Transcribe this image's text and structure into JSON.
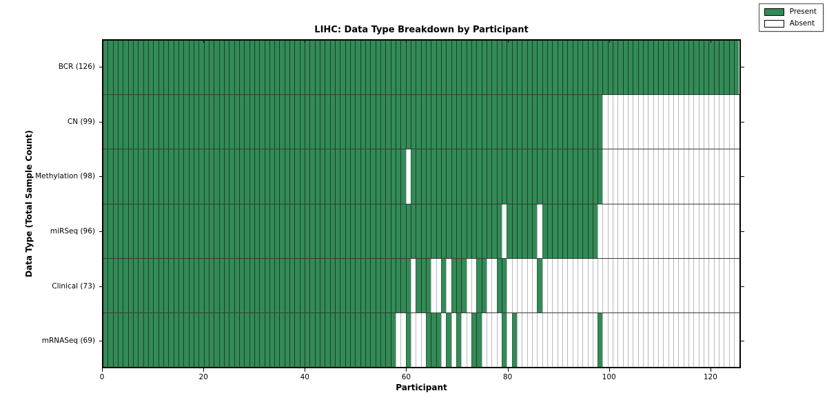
{
  "figure": {
    "title": "LIHC: Data Type Breakdown by Participant",
    "xlabel": "Participant",
    "ylabel": "Data Type (Total Sample Count)"
  },
  "legend": {
    "items": [
      {
        "label": "Present",
        "color": "#348a57"
      },
      {
        "label": "Absent",
        "color": "#ffffff"
      }
    ]
  },
  "colors": {
    "present": "#348a57",
    "absent": "#ffffff",
    "grid_on_green": "rgba(10,40,24,0.75)",
    "grid_on_white": "rgba(0,0,0,0.28)",
    "row_separator": "#3a3a3a",
    "plot_border": "#000000"
  },
  "chart_data": {
    "type": "heatmap",
    "title": "LIHC: Data Type Breakdown by Participant",
    "xlabel": "Participant",
    "ylabel": "Data Type (Total Sample Count)",
    "legend_entries": [
      "Present",
      "Absent"
    ],
    "legend_position": "upper right (inside plot)",
    "grid": "per-participant column grid lines, row separator lines",
    "n_participants": 126,
    "x_range": [
      0,
      126
    ],
    "x_ticks": [
      "0",
      "20",
      "40",
      "60",
      "80",
      "100",
      "120"
    ],
    "x_tick_values": [
      0,
      20,
      40,
      60,
      80,
      100,
      120
    ],
    "cell_values": "present=1, absent=0; rows listed top to bottom",
    "rows": [
      {
        "label": "BCR (126)",
        "name": "BCR",
        "total_samples": 126,
        "present_ranges": [
          [
            0,
            125
          ]
        ]
      },
      {
        "label": "CN (99)",
        "name": "CN",
        "total_samples": 99,
        "present_ranges": [
          [
            0,
            98
          ]
        ]
      },
      {
        "label": "Methylation (98)",
        "name": "Methylation",
        "total_samples": 98,
        "present_ranges": [
          [
            0,
            59
          ],
          [
            61,
            98
          ]
        ]
      },
      {
        "label": "miRSeq (96)",
        "name": "miRSeq",
        "total_samples": 96,
        "present_ranges": [
          [
            0,
            78
          ],
          [
            80,
            85
          ],
          [
            87,
            97
          ]
        ]
      },
      {
        "label": "Clinical (73)",
        "name": "Clinical",
        "total_samples": 73,
        "present_ranges": [
          [
            0,
            60
          ],
          [
            62,
            64
          ],
          [
            67,
            67
          ],
          [
            69,
            71
          ],
          [
            74,
            75
          ],
          [
            78,
            79
          ],
          [
            86,
            86
          ]
        ]
      },
      {
        "label": "mRNASeq (69)",
        "name": "mRNASeq",
        "total_samples": 69,
        "present_ranges": [
          [
            0,
            57
          ],
          [
            60,
            60
          ],
          [
            64,
            66
          ],
          [
            68,
            68
          ],
          [
            70,
            70
          ],
          [
            73,
            74
          ],
          [
            79,
            79
          ],
          [
            81,
            81
          ],
          [
            98,
            98
          ]
        ]
      }
    ]
  }
}
